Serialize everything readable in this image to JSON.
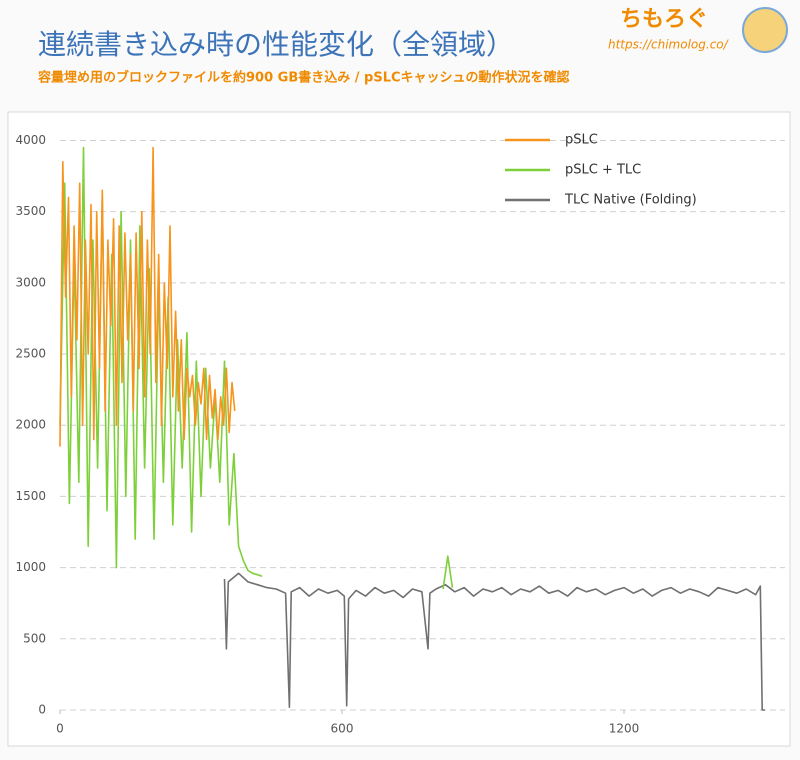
{
  "brand": {
    "name": "ちもろぐ",
    "url": "https://chimolog.co/"
  },
  "chart_data": {
    "type": "line",
    "title": "連続書き込み時の性能変化（全領域）",
    "subtitle": "容量埋め用のブロックファイルを約900 GB書き込み / pSLCキャッシュの動作状況を確認",
    "xlim": [
      0,
      1500
    ],
    "xticks": [
      0,
      600,
      1200
    ],
    "ylim": [
      0,
      4200
    ],
    "yticks": [
      0,
      500,
      1000,
      1500,
      2000,
      2500,
      3000,
      3500,
      4000
    ],
    "grid": true,
    "legend": "upper right",
    "series": [
      {
        "name": "pSLC",
        "color": "#f7941d",
        "x": [
          0,
          6,
          12,
          18,
          24,
          30,
          36,
          42,
          48,
          54,
          60,
          66,
          72,
          78,
          84,
          90,
          96,
          102,
          108,
          114,
          120,
          126,
          132,
          138,
          144,
          150,
          156,
          162,
          168,
          174,
          180,
          186,
          192,
          198,
          204,
          210,
          216,
          222,
          228,
          234,
          240,
          246,
          252,
          258,
          264,
          270,
          276,
          282,
          288,
          294,
          300,
          306,
          312,
          318,
          324,
          330,
          336,
          342,
          348,
          354,
          360,
          366,
          372
        ],
        "values": [
          1850,
          3850,
          2900,
          3600,
          2200,
          3400,
          2600,
          3700,
          2000,
          3300,
          2500,
          3550,
          1900,
          3500,
          2400,
          3650,
          2100,
          3300,
          2700,
          3450,
          2000,
          3400,
          2300,
          3350,
          2600,
          3200,
          2100,
          3350,
          2400,
          3500,
          2200,
          3300,
          2500,
          3950,
          2300,
          3200,
          2000,
          3000,
          2400,
          3400,
          2200,
          2800,
          2100,
          2600,
          1900,
          2400,
          2200,
          2350,
          2000,
          2300,
          2150,
          2400,
          1900,
          2350,
          2050,
          2250,
          1900,
          2200,
          2000,
          2400,
          1950,
          2300,
          2100
        ]
      },
      {
        "name": "pSLC + TLC",
        "color": "#7ed03a",
        "x": [
          0,
          10,
          20,
          30,
          40,
          50,
          60,
          70,
          80,
          90,
          100,
          110,
          120,
          130,
          140,
          150,
          160,
          170,
          180,
          190,
          200,
          210,
          220,
          230,
          240,
          250,
          260,
          270,
          280,
          290,
          300,
          310,
          320,
          330,
          340,
          350,
          360,
          370,
          380,
          390,
          400,
          410,
          420,
          430,
          440,
          815,
          825,
          835
        ],
        "values": [
          2000,
          3700,
          1450,
          3200,
          1600,
          3950,
          1150,
          3300,
          1700,
          3600,
          1400,
          3200,
          1000,
          3500,
          1500,
          3300,
          1200,
          3400,
          1700,
          3100,
          1200,
          3000,
          1600,
          2900,
          1300,
          2600,
          1700,
          2650,
          1250,
          2450,
          1500,
          2400,
          1700,
          2200,
          1600,
          2450,
          1300,
          1800,
          1150,
          1050,
          980,
          960,
          950,
          940,
          null,
          850,
          1080,
          860
        ]
      },
      {
        "name": "TLC Native (Folding)",
        "color": "#707070",
        "x": [
          350,
          354,
          358,
          380,
          400,
          420,
          440,
          460,
          480,
          488,
          492,
          510,
          530,
          550,
          570,
          590,
          605,
          610,
          614,
          630,
          650,
          670,
          690,
          710,
          730,
          750,
          770,
          783,
          787,
          800,
          820,
          840,
          860,
          880,
          900,
          920,
          940,
          960,
          980,
          1000,
          1020,
          1040,
          1060,
          1080,
          1100,
          1120,
          1140,
          1160,
          1180,
          1200,
          1220,
          1240,
          1260,
          1280,
          1300,
          1320,
          1340,
          1360,
          1380,
          1400,
          1420,
          1440,
          1460,
          1480,
          1490,
          1494,
          1500
        ],
        "values": [
          920,
          430,
          900,
          960,
          900,
          880,
          860,
          850,
          820,
          20,
          830,
          860,
          800,
          850,
          820,
          840,
          800,
          30,
          780,
          840,
          800,
          860,
          820,
          840,
          790,
          850,
          830,
          430,
          820,
          850,
          880,
          830,
          860,
          800,
          850,
          830,
          860,
          810,
          850,
          830,
          870,
          820,
          840,
          800,
          860,
          830,
          850,
          810,
          840,
          860,
          820,
          850,
          800,
          840,
          860,
          820,
          850,
          830,
          800,
          860,
          840,
          820,
          850,
          810,
          870,
          0,
          0
        ]
      }
    ]
  }
}
